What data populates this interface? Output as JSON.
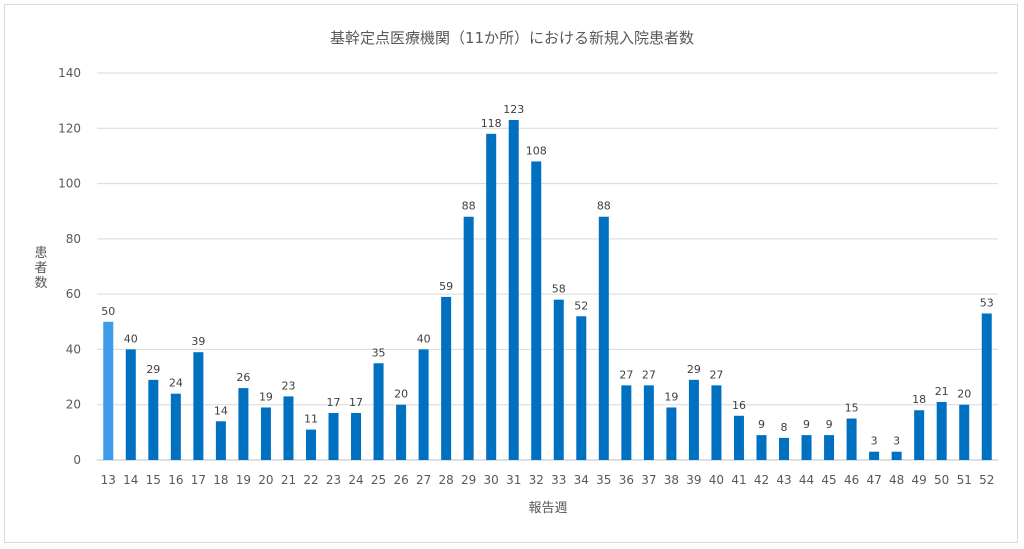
{
  "chart_data": {
    "type": "bar",
    "title": "基幹定点医療機関（11か所）における新規入院患者数",
    "xlabel": "報告週",
    "ylabel": "患者数",
    "categories": [
      "13",
      "14",
      "15",
      "16",
      "17",
      "18",
      "19",
      "20",
      "21",
      "22",
      "23",
      "24",
      "25",
      "26",
      "27",
      "28",
      "29",
      "30",
      "31",
      "32",
      "33",
      "34",
      "35",
      "36",
      "37",
      "38",
      "39",
      "40",
      "41",
      "42",
      "43",
      "44",
      "45",
      "46",
      "47",
      "48",
      "49",
      "50",
      "51",
      "52"
    ],
    "series": [
      {
        "values": [
          50,
          40,
          29,
          24,
          39,
          14,
          26,
          19,
          23,
          11,
          17,
          17,
          35,
          20,
          40,
          59,
          88,
          118,
          123,
          108,
          58,
          52,
          88,
          27,
          27,
          19,
          29,
          27,
          16,
          9,
          8,
          9,
          9,
          15,
          3,
          3,
          18,
          21,
          20,
          53
        ]
      }
    ],
    "ylim": [
      0,
      140
    ],
    "yticks": [
      0,
      20,
      40,
      60,
      80,
      100,
      120,
      140
    ],
    "grid": true,
    "legend": "none",
    "bar_color": "#0070c0",
    "highlight_color": "#3d9be9",
    "highlight_index": 0
  }
}
